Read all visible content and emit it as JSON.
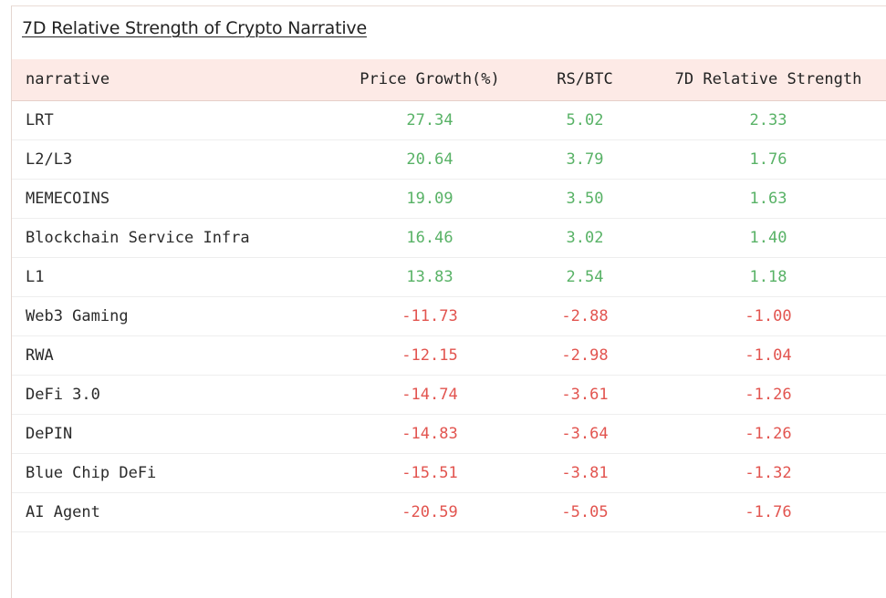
{
  "title": "7D Relative Strength of Crypto Narrative",
  "columns": [
    "narrative",
    "Price Growth(%)",
    "RS/BTC",
    "7D Relative Strength"
  ],
  "rows": [
    {
      "narrative": "LRT",
      "price_growth": "27.34",
      "rs_btc": "5.02",
      "rel_strength": "2.33",
      "trend": "pos"
    },
    {
      "narrative": "L2/L3",
      "price_growth": "20.64",
      "rs_btc": "3.79",
      "rel_strength": "1.76",
      "trend": "pos"
    },
    {
      "narrative": "MEMECOINS",
      "price_growth": "19.09",
      "rs_btc": "3.50",
      "rel_strength": "1.63",
      "trend": "pos"
    },
    {
      "narrative": "Blockchain Service Infra",
      "price_growth": "16.46",
      "rs_btc": "3.02",
      "rel_strength": "1.40",
      "trend": "pos"
    },
    {
      "narrative": "L1",
      "price_growth": "13.83",
      "rs_btc": "2.54",
      "rel_strength": "1.18",
      "trend": "pos"
    },
    {
      "narrative": "Web3 Gaming",
      "price_growth": "-11.73",
      "rs_btc": "-2.88",
      "rel_strength": "-1.00",
      "trend": "neg"
    },
    {
      "narrative": "RWA",
      "price_growth": "-12.15",
      "rs_btc": "-2.98",
      "rel_strength": "-1.04",
      "trend": "neg"
    },
    {
      "narrative": "DeFi 3.0",
      "price_growth": "-14.74",
      "rs_btc": "-3.61",
      "rel_strength": "-1.26",
      "trend": "neg"
    },
    {
      "narrative": "DePIN",
      "price_growth": "-14.83",
      "rs_btc": "-3.64",
      "rel_strength": "-1.26",
      "trend": "neg"
    },
    {
      "narrative": "Blue Chip DeFi",
      "price_growth": "-15.51",
      "rs_btc": "-3.81",
      "rel_strength": "-1.32",
      "trend": "neg"
    },
    {
      "narrative": "AI Agent",
      "price_growth": "-20.59",
      "rs_btc": "-5.05",
      "rel_strength": "-1.76",
      "trend": "neg"
    }
  ],
  "colors": {
    "positive": "#58b266",
    "negative": "#e2544f",
    "header_bg": "#fdeae6"
  }
}
